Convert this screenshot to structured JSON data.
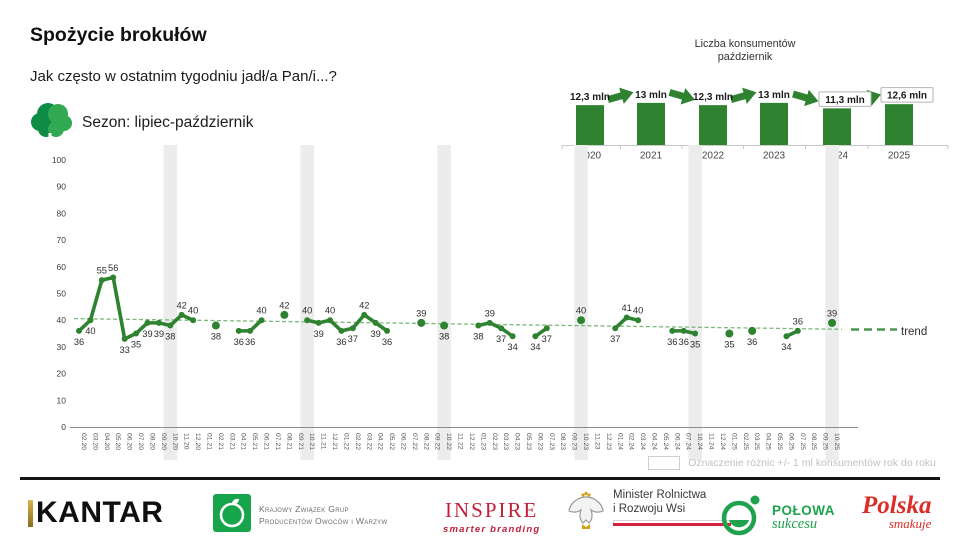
{
  "header": {
    "title": "Spożycie brokułów",
    "subtitle": "Jak często w ostatnim tygodniu jadł/a Pan/i...?",
    "season_label": "Sezon: lipiec-październik"
  },
  "mini_chart": {
    "type": "bar",
    "title_line1": "Liczba konsumentów",
    "title_line2": "październik",
    "categories": [
      "2020",
      "2021",
      "2022",
      "2023",
      "2024",
      "2025"
    ],
    "values": [
      12.3,
      13,
      12.3,
      13,
      11.3,
      12.6
    ],
    "value_labels": [
      "12,3 mln",
      "13 mln",
      "12,3 mln",
      "13 mln",
      "11,3 mln",
      "12,6 mln"
    ],
    "boxed_labels": [
      false,
      false,
      false,
      false,
      true,
      true
    ],
    "arrows": [
      "up",
      "down",
      "up",
      "down",
      "up"
    ],
    "bar_color": "#2e8230"
  },
  "chart_data": {
    "type": "line",
    "title": "Spożycie brokułów",
    "series_name": "Sezon: lipiec-październik",
    "ylim": [
      0,
      100
    ],
    "yticks": [
      0,
      10,
      20,
      30,
      40,
      50,
      60,
      70,
      80,
      90,
      100
    ],
    "x_labels": [
      "02.20",
      "03.20",
      "04.20",
      "05.20",
      "06.20",
      "07.20",
      "08.20",
      "09.20",
      "10.20",
      "11.20",
      "12.20",
      "01.21",
      "02.21",
      "03.21",
      "04.21",
      "05.21",
      "06.21",
      "07.21",
      "08.21",
      "09.21",
      "10.21",
      "11.21",
      "12.21",
      "01.22",
      "02.22",
      "03.22",
      "04.22",
      "05.22",
      "06.22",
      "07.22",
      "08.22",
      "09.22",
      "10.22",
      "11.22",
      "12.22",
      "01.23",
      "02.23",
      "03.23",
      "04.23",
      "05.23",
      "06.23",
      "07.23",
      "08.23",
      "09.23",
      "10.23",
      "11.23",
      "12.23",
      "01.24",
      "02.24",
      "03.24",
      "04.24",
      "05.24",
      "06.24",
      "07.24",
      "10.24",
      "11.24",
      "12.24",
      "01.25",
      "02.25",
      "03.25",
      "04.25",
      "05.25",
      "06.25",
      "07.25",
      "08.25",
      "09.25",
      "10.25"
    ],
    "highlighted_x": [
      "10.20",
      "10.21",
      "10.22",
      "10.23",
      "10.24",
      "10.25"
    ],
    "line_color": "#2e8230",
    "points": [
      {
        "x": "02.20",
        "y": 36,
        "label_pos": "below"
      },
      {
        "x": "03.20",
        "y": 40,
        "label_pos": "below"
      },
      {
        "x": "04.20",
        "y": 55,
        "label_pos": "above"
      },
      {
        "x": "05.20",
        "y": 56,
        "label_pos": "above"
      },
      {
        "x": "06.20",
        "y": 33,
        "label_pos": "below"
      },
      {
        "x": "07.20",
        "y": 35,
        "label_pos": "below"
      },
      {
        "x": "08.20",
        "y": 39,
        "label_pos": "below"
      },
      {
        "x": "09.20",
        "y": 39,
        "label_pos": "below"
      },
      {
        "x": "10.20",
        "y": 38,
        "label_pos": "below"
      },
      {
        "x": "11.20",
        "y": 42,
        "label_pos": "above"
      },
      {
        "x": "12.20",
        "y": 40,
        "label_pos": "above"
      },
      {
        "x": "02.21",
        "y": 38,
        "label_pos": "below"
      },
      {
        "x": "04.21",
        "y": 36,
        "label_pos": "below"
      },
      {
        "x": "05.21",
        "y": 36,
        "label_pos": "below"
      },
      {
        "x": "06.21",
        "y": 40,
        "label_pos": "above"
      },
      {
        "x": "08.21",
        "y": 42,
        "label_pos": "above"
      },
      {
        "x": "10.21",
        "y": 40,
        "label_pos": "above"
      },
      {
        "x": "11.21",
        "y": 39,
        "label_pos": "below"
      },
      {
        "x": "12.21",
        "y": 40,
        "label_pos": "above"
      },
      {
        "x": "01.22",
        "y": 36,
        "label_pos": "below"
      },
      {
        "x": "02.22",
        "y": 37,
        "label_pos": "below"
      },
      {
        "x": "03.22",
        "y": 42,
        "label_pos": "above"
      },
      {
        "x": "04.22",
        "y": 39,
        "label_pos": "below"
      },
      {
        "x": "05.22",
        "y": 36,
        "label_pos": "below"
      },
      {
        "x": "08.22",
        "y": 39,
        "label_pos": "above"
      },
      {
        "x": "10.22",
        "y": 38,
        "label_pos": "below"
      },
      {
        "x": "01.23",
        "y": 38,
        "label_pos": "below"
      },
      {
        "x": "02.23",
        "y": 39,
        "label_pos": "above"
      },
      {
        "x": "03.23",
        "y": 37,
        "label_pos": "below"
      },
      {
        "x": "04.23",
        "y": 34,
        "label_pos": "below"
      },
      {
        "x": "06.23",
        "y": 34,
        "label_pos": "below"
      },
      {
        "x": "07.23",
        "y": 37,
        "label_pos": "below"
      },
      {
        "x": "10.23",
        "y": 40,
        "label_pos": "above"
      },
      {
        "x": "01.24",
        "y": 37,
        "label_pos": "below"
      },
      {
        "x": "02.24",
        "y": 41,
        "label_pos": "above"
      },
      {
        "x": "03.24",
        "y": 40,
        "label_pos": "above"
      },
      {
        "x": "06.24",
        "y": 36,
        "label_pos": "below"
      },
      {
        "x": "07.24",
        "y": 36,
        "label_pos": "below"
      },
      {
        "x": "10.24",
        "y": 35,
        "label_pos": "below"
      },
      {
        "x": "01.25",
        "y": 35,
        "label_pos": "below"
      },
      {
        "x": "03.25",
        "y": 36,
        "label_pos": "below"
      },
      {
        "x": "06.25",
        "y": 34,
        "label_pos": "below"
      },
      {
        "x": "07.25",
        "y": 36,
        "label_pos": "above"
      },
      {
        "x": "10.25",
        "y": 39,
        "label_pos": "above"
      }
    ],
    "trend": {
      "label": "trend",
      "start_value": 40.6,
      "end_value": 36.6,
      "color": "#7ab97a"
    }
  },
  "footer": {
    "note": "Oznaczenie różnic +/- 1 ml konsumentów rok do roku"
  },
  "logos": {
    "kantar": "KANTAR",
    "kzg_line1": "Krajowy Związek Grup",
    "kzg_line2": "Producentów Owoców i Warzyw",
    "inspire": "INSPIRE",
    "inspire_sub": "smarter branding",
    "minister_line1": "Minister Rolnictwa",
    "minister_line2": "i Rozwoju Wsi",
    "polowa_line1": "POŁOWA",
    "polowa_line2": "sukcesu",
    "polska_line1": "Polska",
    "polska_line2": "smakuje"
  }
}
